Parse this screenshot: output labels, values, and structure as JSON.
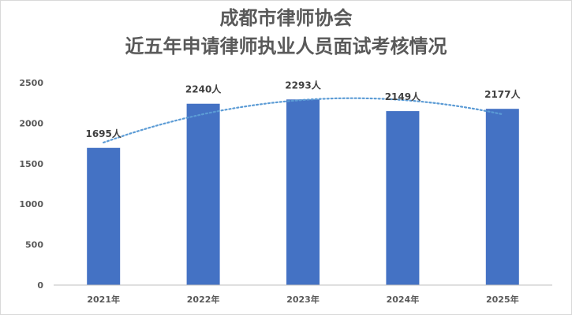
{
  "chart_data": {
    "type": "bar",
    "title_line1": "成都市律师协会",
    "title_line2": "近五年申请律师执业人员面试考核情况",
    "categories": [
      "2021年",
      "2022年",
      "2023年",
      "2024年",
      "2025年"
    ],
    "values": [
      1695,
      2240,
      2293,
      2149,
      2177
    ],
    "data_labels": [
      "1695人",
      "2240人",
      "2293人",
      "2149人",
      "2177人"
    ],
    "yticks": [
      "0",
      "500",
      "1000",
      "1500",
      "2000",
      "2500"
    ],
    "ylim": [
      0,
      2500
    ],
    "grid": false,
    "legend": "none",
    "trendline": "polynomial dotted",
    "bar_color": "#4472C4",
    "trend_color": "#5B9BD5"
  }
}
